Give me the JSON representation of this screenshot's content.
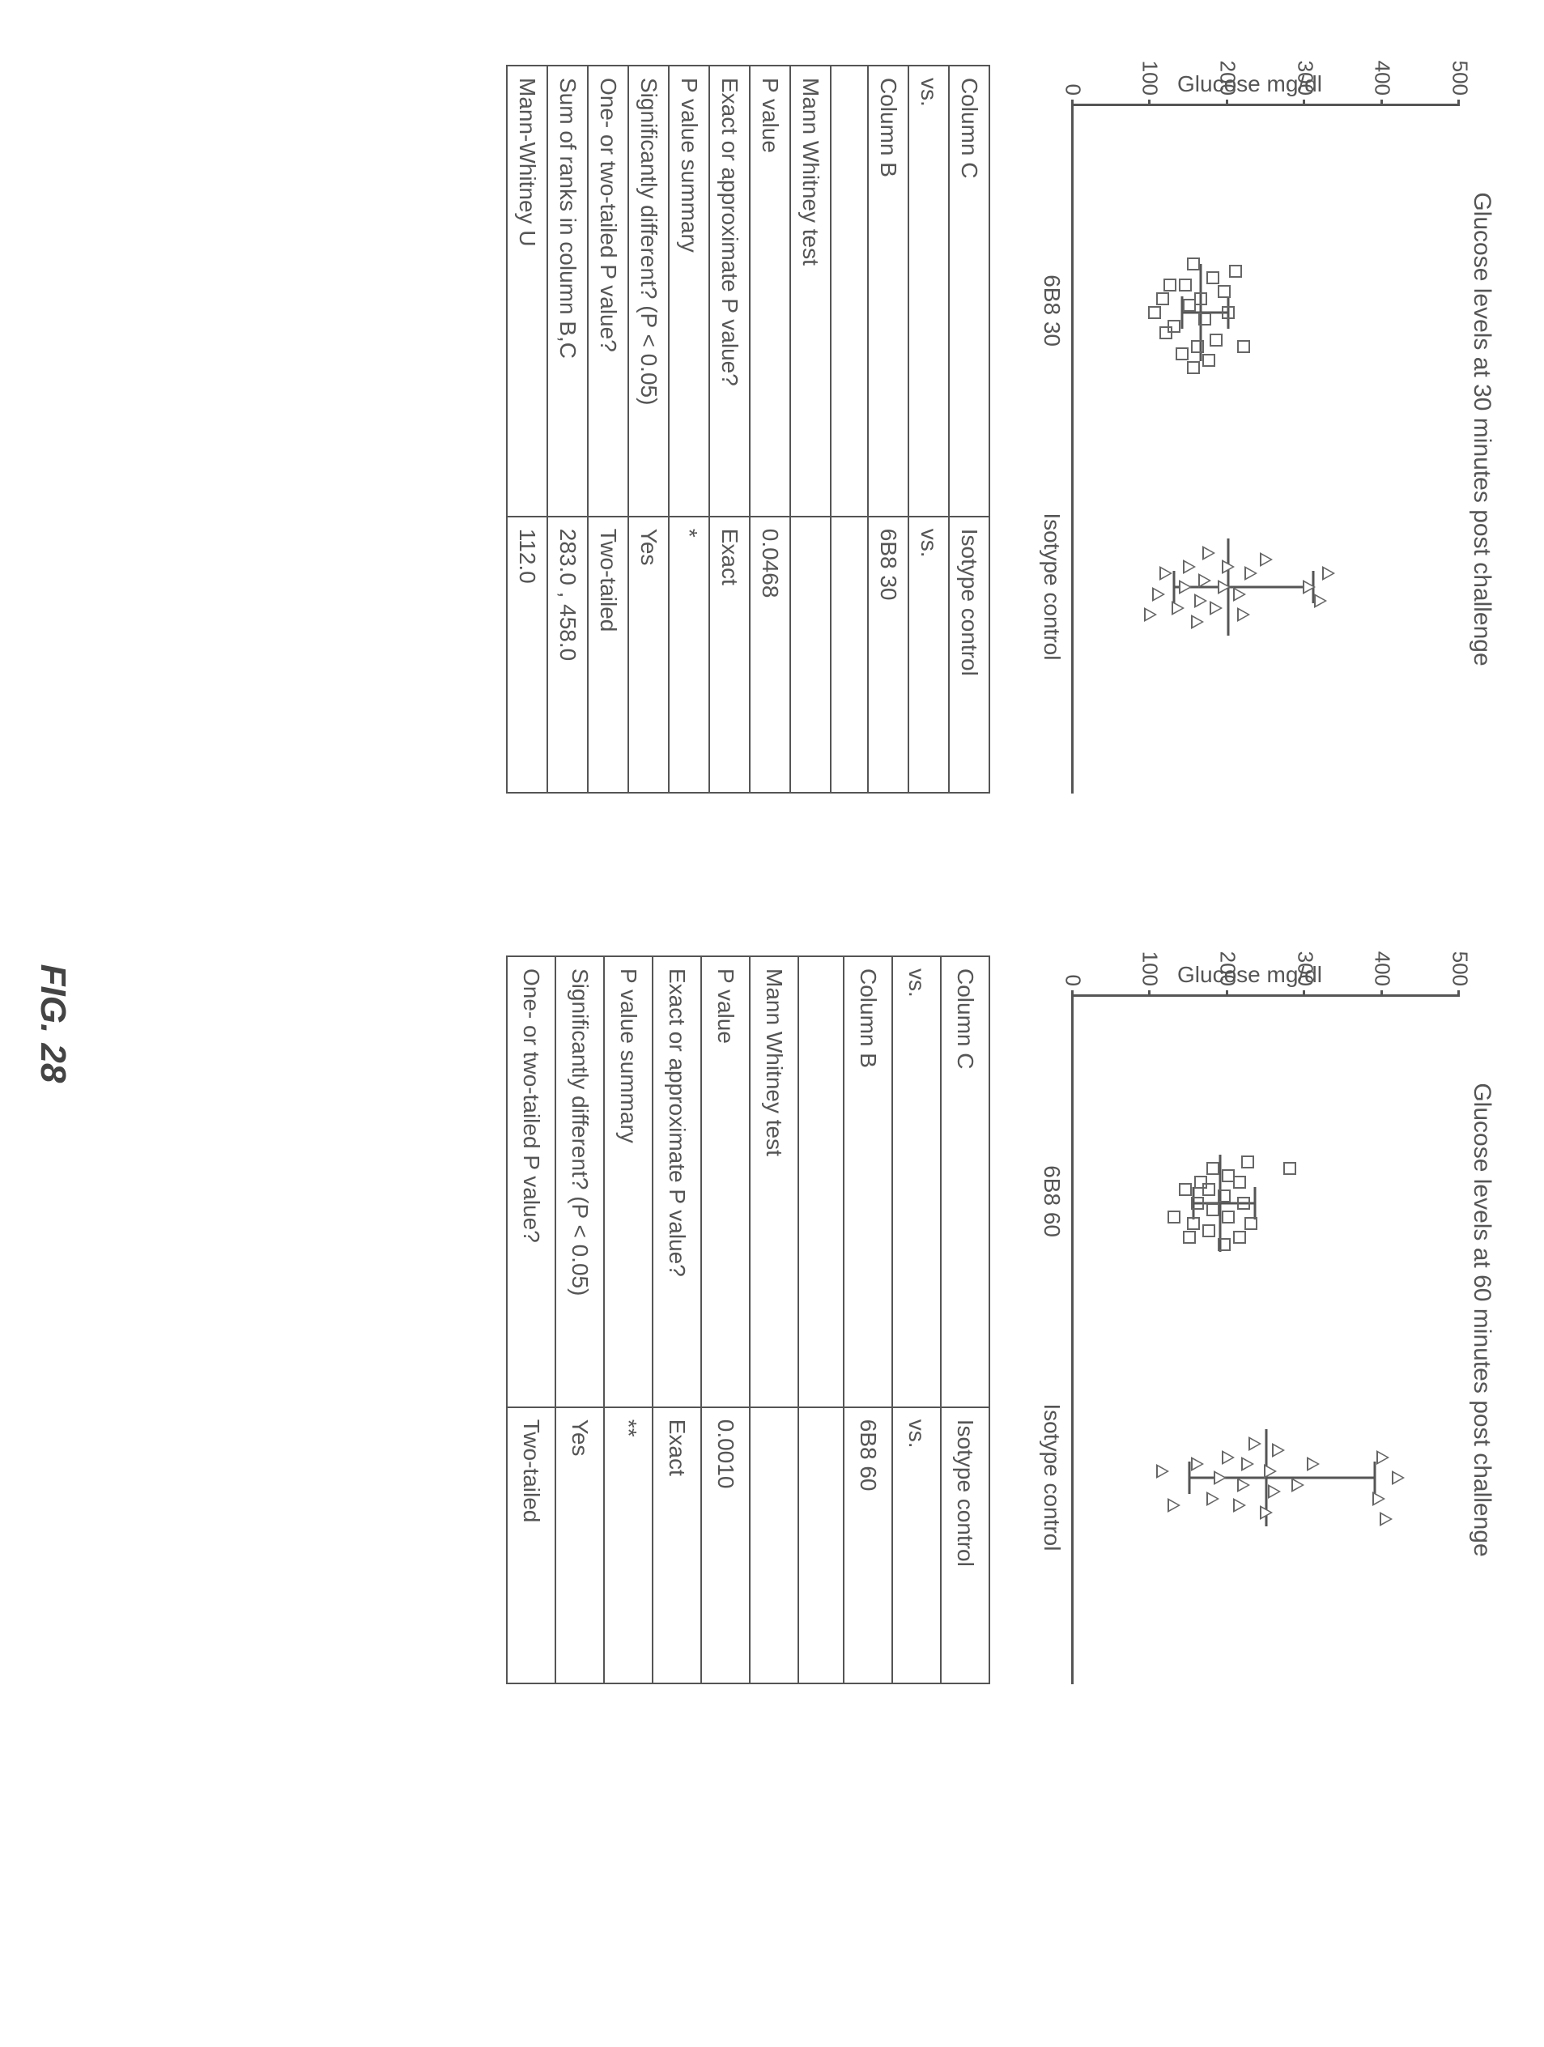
{
  "figure_label": "FIG. 28",
  "charts": [
    {
      "title": "Glucose levels at 30 minutes post challenge",
      "ylabel": "Glucose mg/dl",
      "ylim": [
        0,
        500
      ],
      "yticks": [
        0,
        100,
        200,
        300,
        400,
        500
      ],
      "categories": [
        "6B8 30",
        "Isotype control"
      ],
      "category_x": [
        0.3,
        0.7
      ],
      "series": [
        {
          "marker": "square",
          "x": 0.3,
          "mean": 165,
          "err_low": 140,
          "err_high": 200,
          "points": [
            {
              "dx": -0.06,
              "y": 210
            },
            {
              "dx": -0.05,
              "y": 180
            },
            {
              "dx": -0.07,
              "y": 155
            },
            {
              "dx": -0.03,
              "y": 195
            },
            {
              "dx": -0.02,
              "y": 165
            },
            {
              "dx": -0.04,
              "y": 145
            },
            {
              "dx": 0.0,
              "y": 200
            },
            {
              "dx": 0.01,
              "y": 170
            },
            {
              "dx": -0.01,
              "y": 150
            },
            {
              "dx": 0.02,
              "y": 130
            },
            {
              "dx": 0.04,
              "y": 185
            },
            {
              "dx": 0.05,
              "y": 160
            },
            {
              "dx": 0.06,
              "y": 140
            },
            {
              "dx": 0.03,
              "y": 120
            },
            {
              "dx": 0.07,
              "y": 175
            },
            {
              "dx": 0.08,
              "y": 155
            },
            {
              "dx": -0.02,
              "y": 115
            },
            {
              "dx": 0.0,
              "y": 105
            },
            {
              "dx": 0.05,
              "y": 220
            },
            {
              "dx": -0.04,
              "y": 125
            }
          ]
        },
        {
          "marker": "triangle",
          "x": 0.7,
          "mean": 200,
          "err_low": 130,
          "err_high": 310,
          "points": [
            {
              "dx": -0.02,
              "y": 330
            },
            {
              "dx": 0.02,
              "y": 320
            },
            {
              "dx": 0.0,
              "y": 305
            },
            {
              "dx": -0.04,
              "y": 250
            },
            {
              "dx": -0.02,
              "y": 230
            },
            {
              "dx": 0.01,
              "y": 215
            },
            {
              "dx": 0.04,
              "y": 220
            },
            {
              "dx": -0.03,
              "y": 200
            },
            {
              "dx": 0.0,
              "y": 195
            },
            {
              "dx": 0.03,
              "y": 185
            },
            {
              "dx": -0.05,
              "y": 175
            },
            {
              "dx": -0.01,
              "y": 170
            },
            {
              "dx": 0.02,
              "y": 165
            },
            {
              "dx": 0.05,
              "y": 160
            },
            {
              "dx": -0.03,
              "y": 150
            },
            {
              "dx": 0.0,
              "y": 145
            },
            {
              "dx": 0.03,
              "y": 135
            },
            {
              "dx": -0.02,
              "y": 120
            },
            {
              "dx": 0.01,
              "y": 110
            },
            {
              "dx": 0.04,
              "y": 100
            }
          ]
        }
      ]
    },
    {
      "title": "Glucose levels at 60 minutes post challenge",
      "ylabel": "Glucose mg/dl",
      "ylim": [
        0,
        500
      ],
      "yticks": [
        0,
        100,
        200,
        300,
        400,
        500
      ],
      "categories": [
        "6B8 60",
        "Isotype control"
      ],
      "category_x": [
        0.3,
        0.7
      ],
      "series": [
        {
          "marker": "square",
          "x": 0.3,
          "mean": 190,
          "err_low": 155,
          "err_high": 235,
          "points": [
            {
              "dx": -0.05,
              "y": 280
            },
            {
              "dx": -0.06,
              "y": 225
            },
            {
              "dx": -0.03,
              "y": 215
            },
            {
              "dx": 0.0,
              "y": 220
            },
            {
              "dx": 0.03,
              "y": 230
            },
            {
              "dx": 0.05,
              "y": 215
            },
            {
              "dx": -0.04,
              "y": 200
            },
            {
              "dx": -0.01,
              "y": 195
            },
            {
              "dx": 0.02,
              "y": 200
            },
            {
              "dx": 0.06,
              "y": 195
            },
            {
              "dx": -0.05,
              "y": 180
            },
            {
              "dx": -0.02,
              "y": 175
            },
            {
              "dx": 0.01,
              "y": 180
            },
            {
              "dx": 0.04,
              "y": 175
            },
            {
              "dx": -0.03,
              "y": 165
            },
            {
              "dx": 0.0,
              "y": 160
            },
            {
              "dx": 0.03,
              "y": 155
            },
            {
              "dx": -0.02,
              "y": 145
            },
            {
              "dx": 0.02,
              "y": 130
            },
            {
              "dx": 0.05,
              "y": 150
            }
          ]
        },
        {
          "marker": "triangle",
          "x": 0.7,
          "mean": 250,
          "err_low": 150,
          "err_high": 390,
          "points": [
            {
              "dx": 0.0,
              "y": 420
            },
            {
              "dx": -0.03,
              "y": 400
            },
            {
              "dx": 0.03,
              "y": 395
            },
            {
              "dx": 0.06,
              "y": 405
            },
            {
              "dx": -0.02,
              "y": 310
            },
            {
              "dx": 0.01,
              "y": 290
            },
            {
              "dx": -0.04,
              "y": 265
            },
            {
              "dx": -0.01,
              "y": 255
            },
            {
              "dx": 0.02,
              "y": 260
            },
            {
              "dx": 0.05,
              "y": 250
            },
            {
              "dx": -0.05,
              "y": 235
            },
            {
              "dx": -0.02,
              "y": 225
            },
            {
              "dx": 0.01,
              "y": 220
            },
            {
              "dx": 0.04,
              "y": 215
            },
            {
              "dx": -0.03,
              "y": 200
            },
            {
              "dx": 0.0,
              "y": 190
            },
            {
              "dx": 0.03,
              "y": 180
            },
            {
              "dx": -0.02,
              "y": 160
            },
            {
              "dx": 0.04,
              "y": 130
            },
            {
              "dx": -0.01,
              "y": 115
            }
          ]
        }
      ]
    }
  ],
  "tables": [
    {
      "rows": [
        [
          "Column C",
          "Isotype control"
        ],
        [
          "vs.",
          "vs."
        ],
        [
          "Column B",
          "6B8 30"
        ],
        [
          "",
          ""
        ],
        [
          "Mann Whitney test",
          ""
        ],
        [
          "P value",
          "0.0468"
        ],
        [
          "Exact or approximate P value?",
          "Exact"
        ],
        [
          "P value summary",
          "*"
        ],
        [
          "Significantly different? (P < 0.05)",
          "Yes"
        ],
        [
          "One- or two-tailed P value?",
          "Two-tailed"
        ],
        [
          "Sum of ranks in column B,C",
          "283.0 , 458.0"
        ],
        [
          "Mann-Whitney U",
          "112.0"
        ]
      ]
    },
    {
      "rows": [
        [
          "Column C",
          "Isotype control"
        ],
        [
          "vs.",
          "vs."
        ],
        [
          "Column B",
          "6B8 60"
        ],
        [
          "",
          ""
        ],
        [
          "Mann Whitney test",
          ""
        ],
        [
          "P value",
          "0.0010"
        ],
        [
          "Exact or approximate P value?",
          "Exact"
        ],
        [
          "P value summary",
          "**"
        ],
        [
          "Significantly different? (P < 0.05)",
          "Yes"
        ],
        [
          "One- or two-tailed P value?",
          "Two-tailed"
        ]
      ]
    }
  ],
  "colors": {
    "axis": "#555555",
    "marker_stroke": "#666666",
    "text": "#555555",
    "background": "#ffffff"
  }
}
